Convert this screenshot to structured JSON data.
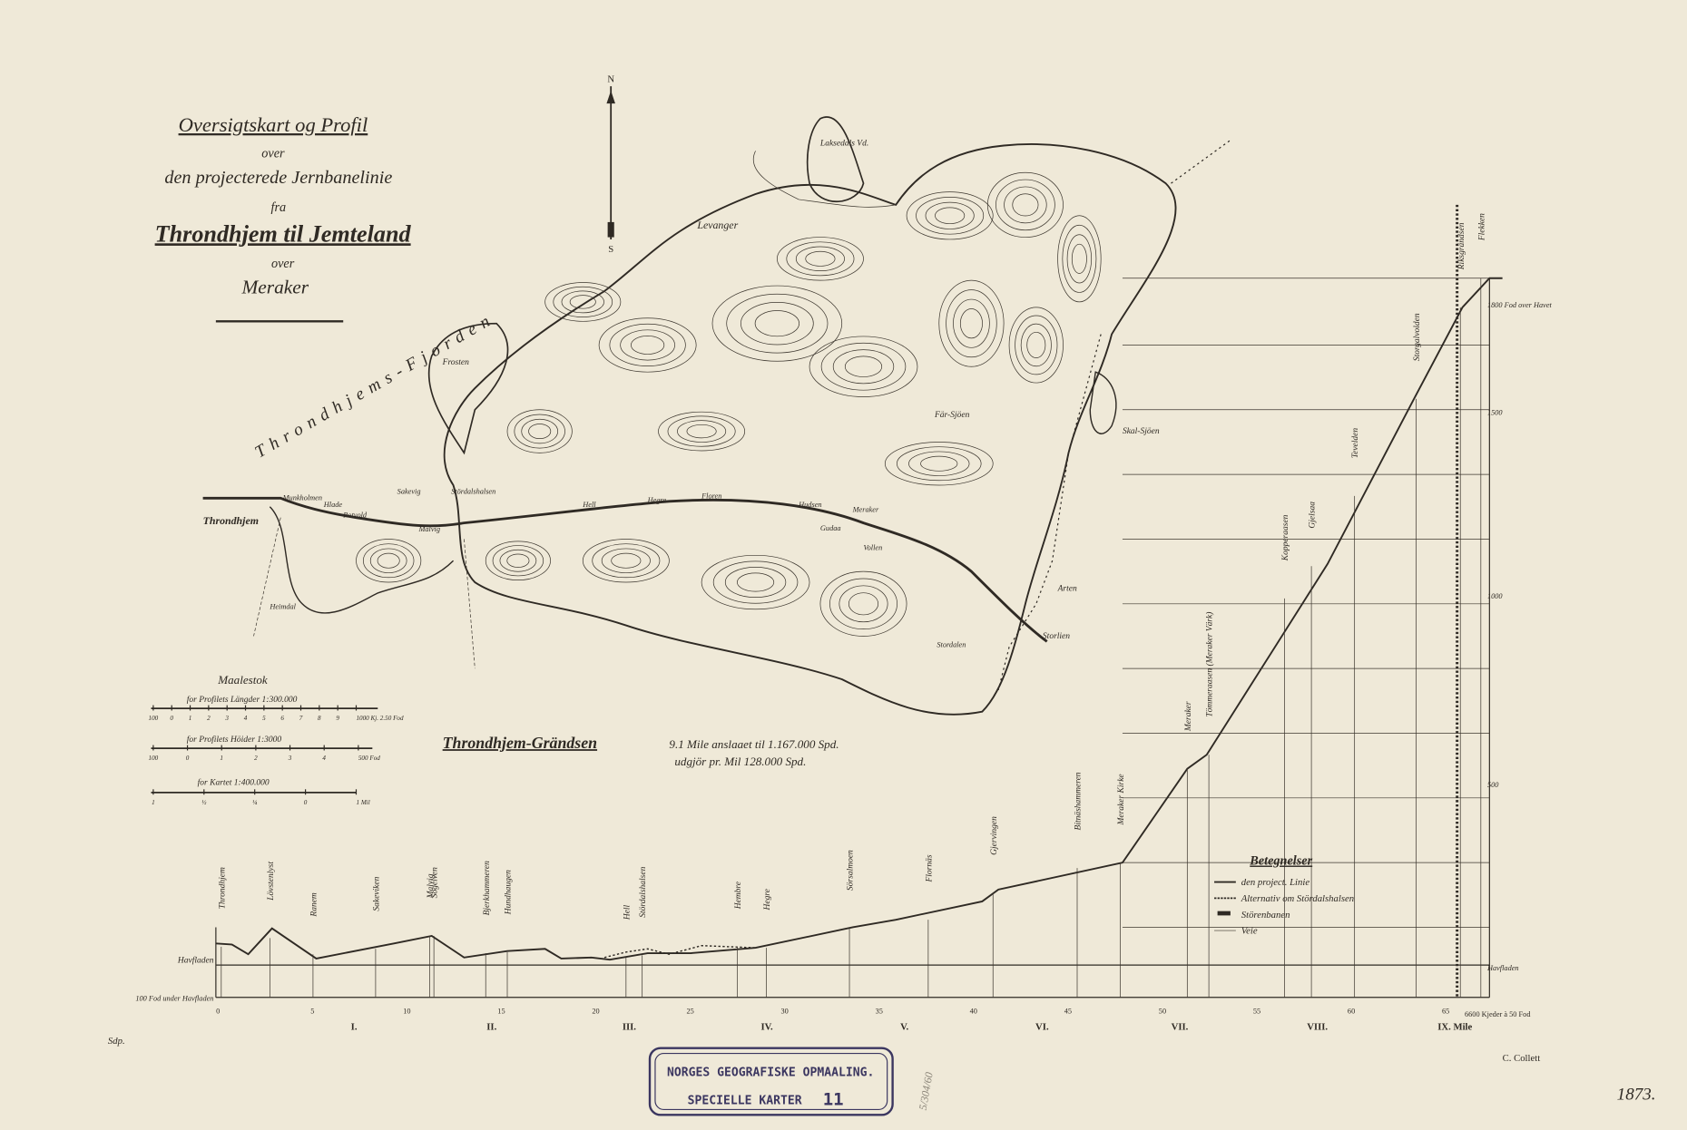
{
  "title": {
    "line1": "Oversigtskart og Profil",
    "line2": "over",
    "line3": "den projecterede Jernbanelinie",
    "line4": "fra",
    "line5": "Throndhjem til Jemteland",
    "line6": "over",
    "line7": "Meraker"
  },
  "map_labels": {
    "fjord": "Throndhjems-Fjorden",
    "levanger": "Levanger",
    "laksedal": "Laksedals Vd.",
    "frosten": "Frosten",
    "throndhjem": "Throndhjem",
    "munkholmen": "Munkholmen",
    "hlade": "Hlade",
    "rotvold": "Rotvold",
    "sakevig": "Sakevig",
    "malvig": "Malvig",
    "stordalshalsen": "Stördalshalsen",
    "hell": "Hell",
    "hegre": "Hegre",
    "floren": "Floren",
    "hudsen": "Hudsen",
    "gudaa": "Gudaa",
    "vollen": "Vollen",
    "meraker": "Meraker",
    "far_sjoen": "Fär-Sjöen",
    "skal_sjoen": "Skal-Sjöen",
    "arten": "Arten",
    "storlien": "Storlien",
    "stordalen": "Stordalen",
    "heimdal": "Heimdal",
    "north": "N",
    "south": "S"
  },
  "scales": {
    "heading": "Maalestok",
    "profile_length": "for Profilets Längder 1:300.000",
    "profile_length_ticks": [
      "100",
      "0",
      "1",
      "2",
      "3",
      "4",
      "5",
      "6",
      "7",
      "8",
      "9",
      "1000 Kj. 2.50 Fod"
    ],
    "profile_height": "for Profilets Höider 1:3000",
    "profile_height_ticks": [
      "100",
      "0",
      "1",
      "2",
      "3",
      "4",
      "500 Fod"
    ],
    "map": "for Kartet 1:400.000",
    "map_ticks": [
      "1",
      "½",
      "¼",
      "0",
      "1 Mil"
    ]
  },
  "cost": {
    "line1": "Throndhjem-Grändsen",
    "line2": "9.1 Mile anslaaet til 1.167.000 Spd.",
    "line3": "udgjör pr. Mil 128.000 Spd."
  },
  "profile": {
    "stations": [
      "Throndhjem",
      "Lövstenlyst",
      "Ranem",
      "Sakeviken",
      "Malvig",
      "Sogelven",
      "Bjerkhammeren",
      "Hundhaugen",
      "Hell",
      "Stördalshalsen",
      "Hembre",
      "Hegre",
      "Sörsalmoen",
      "Flornäs",
      "Gjervingen",
      "Bitnäshammeren",
      "Meraker Kirke",
      "Meraker",
      "Tömmeraasen (Meraker Värk)",
      "Kopperaasen",
      "Gjelsaa",
      "Tevelden",
      "Storgalvolden",
      "Riksgrändsen",
      "Flekken"
    ],
    "x_labels": [
      "0",
      "5",
      "10",
      "15",
      "20",
      "25",
      "30",
      "35",
      "40",
      "45",
      "50",
      "55",
      "60",
      "65"
    ],
    "mile_labels": [
      "I.",
      "II.",
      "III.",
      "IV.",
      "V.",
      "VI.",
      "VII.",
      "VIII.",
      "IX. Mile"
    ],
    "end_label": "6600 Kjeder à 50 Fod",
    "y_labels": [
      "1800 Fod over Havet",
      "1500",
      "1000",
      "500",
      "Havfladen"
    ],
    "left_labels": [
      "Havfladen",
      "100 Fod under Havfladen"
    ]
  },
  "legend": {
    "title": "Betegnelser",
    "items": [
      "den project. Linie",
      "Alternativ om Stördalshalsen",
      "Störenbanen",
      "Veie"
    ]
  },
  "stamp": {
    "line1": "NORGES GEOGRAFISKE OPMAALING.",
    "line2": "SPECIELLE KARTER",
    "number": "11"
  },
  "signature": "C. Collett",
  "initials": "Sdp.",
  "pencil_note": "5/304/60",
  "year": "1873."
}
